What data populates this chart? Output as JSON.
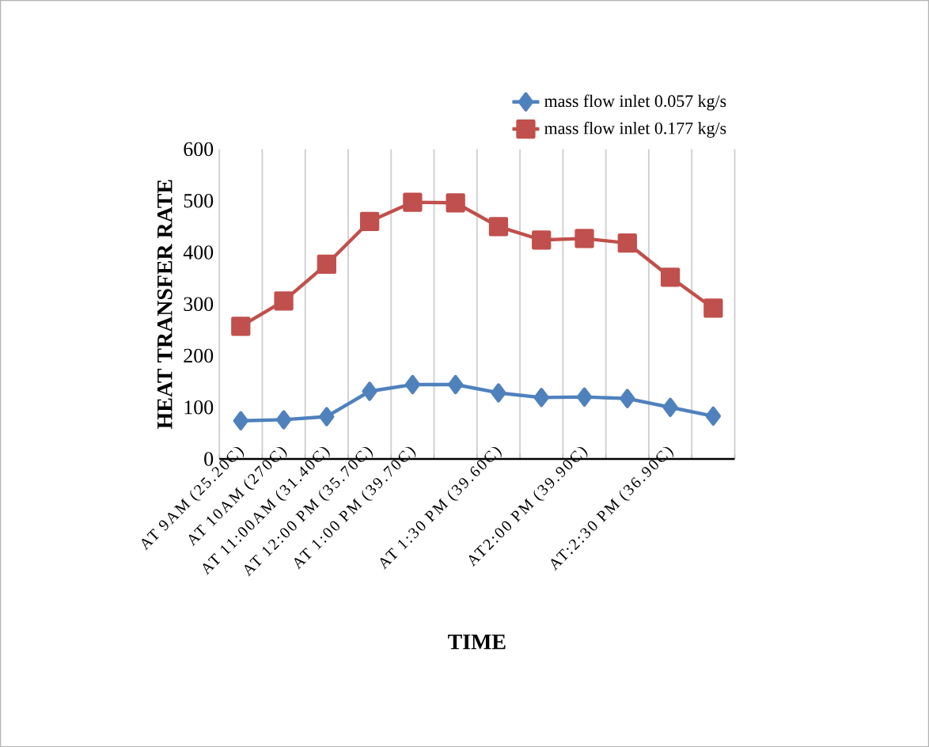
{
  "chart_data": {
    "type": "line",
    "xlabel": "TIME",
    "ylabel": "HEAT TRANSFER RATE",
    "categories": [
      "AT 9AM  (25.20C)",
      "AT 10AM  (270C)",
      "AT 11:00AM  (31.40C)",
      "AT 12:00 PM  (35.70C)",
      "AT 1:00 PM  (39.70C)",
      null,
      "AT 1:30 PM  (39.60C)",
      null,
      "AT2:00 PM  (39.90C)",
      null,
      "AT:2:30 PM  (36.90C)",
      null
    ],
    "series": [
      {
        "name": "mass flow inlet 0.057 kg/s",
        "color": "#4f81bd",
        "marker": "diamond",
        "values": [
          74,
          76,
          82,
          131,
          144,
          144,
          128,
          119,
          120,
          117,
          100,
          83
        ]
      },
      {
        "name": "mass flow inlet 0.177 kg/s",
        "color": "#c0504d",
        "marker": "square",
        "values": [
          257,
          306,
          377,
          460,
          497,
          496,
          450,
          424,
          427,
          418,
          352,
          292
        ]
      }
    ],
    "ylim": [
      0,
      600
    ],
    "yticks": [
      0,
      100,
      200,
      300,
      400,
      500,
      600
    ],
    "grid": "x",
    "legend": "top right",
    "line_style": "solid"
  }
}
